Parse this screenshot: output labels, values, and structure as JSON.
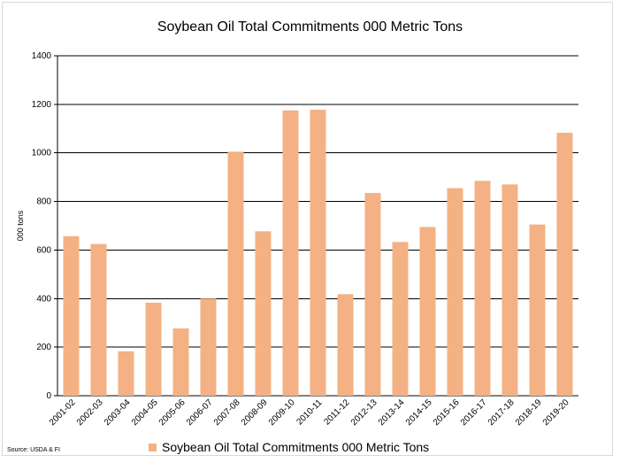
{
  "chart_data": {
    "type": "bar",
    "title": "Soybean Oil Total Commitments 000 Metric Tons",
    "ylabel": "000 tons",
    "xlabel": "",
    "ylim": [
      0,
      1400
    ],
    "yticks": [
      0,
      200,
      400,
      600,
      800,
      1000,
      1200,
      1400
    ],
    "grid": true,
    "legend_position": "bottom",
    "categories": [
      "2001-02",
      "2002-03",
      "2003-04",
      "2004-05",
      "2005-06",
      "2006-07",
      "2007-08",
      "2008-09",
      "2009-10",
      "2010-11",
      "2011-12",
      "2012-13",
      "2013-14",
      "2014-15",
      "2015-16",
      "2016-17",
      "2017-18",
      "2018-19",
      "2019-20"
    ],
    "series": [
      {
        "name": "Soybean Oil Total Commitments 000 Metric Tons",
        "color": "#f4b183",
        "values": [
          657,
          625,
          183,
          383,
          277,
          400,
          1005,
          677,
          1175,
          1178,
          418,
          835,
          633,
          695,
          855,
          885,
          870,
          705,
          1083
        ]
      }
    ]
  },
  "source": "Source: USDA & FI"
}
